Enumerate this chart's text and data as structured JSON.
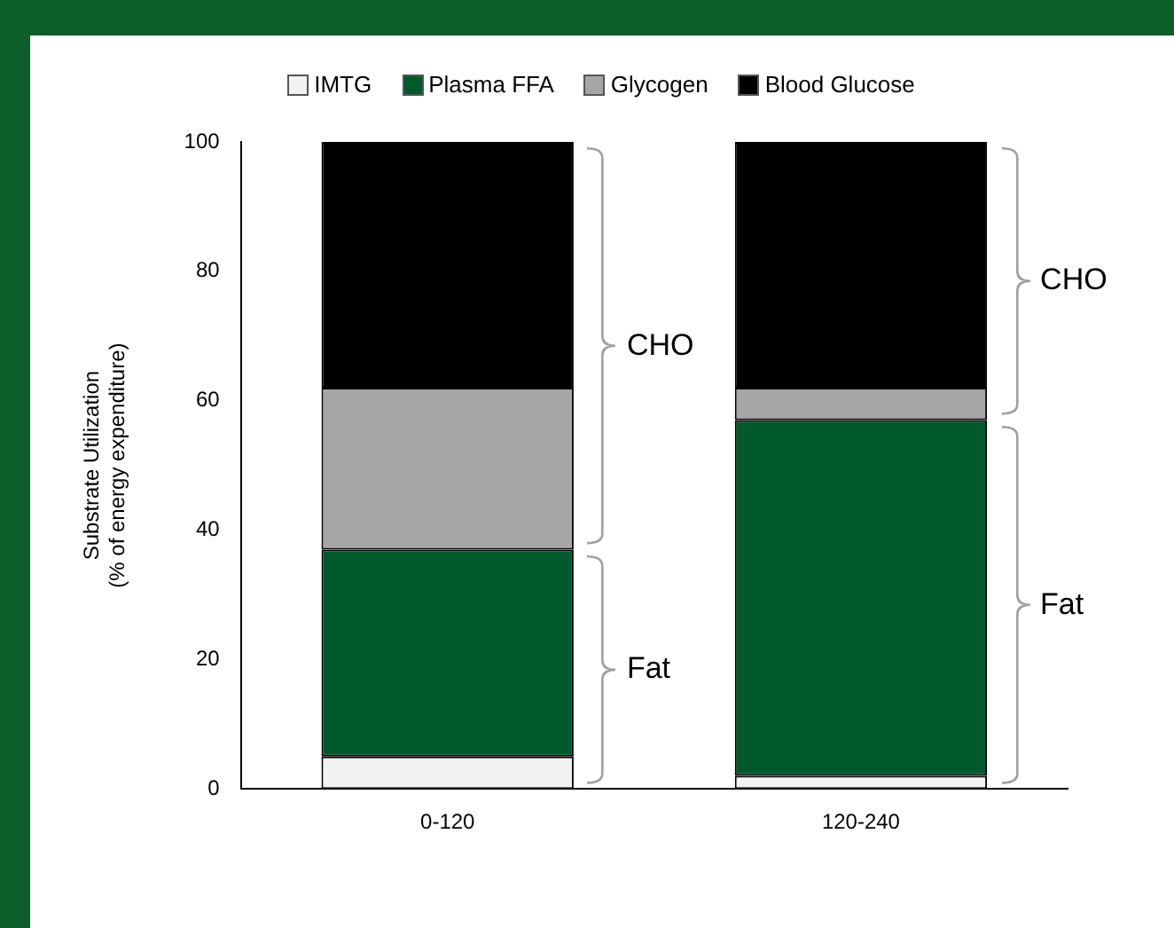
{
  "chart_data": {
    "type": "bar",
    "stacked": true,
    "ylabel": "Substrate Utilization\n(% of energy expenditure)",
    "categories": [
      "0-120",
      "120-240"
    ],
    "series": [
      {
        "name": "IMTG",
        "color": "#f2f2f2",
        "values": [
          5,
          2
        ]
      },
      {
        "name": "Plasma FFA",
        "color": "#005a2b",
        "values": [
          32,
          55
        ]
      },
      {
        "name": "Glycogen",
        "color": "#a6a6a6",
        "values": [
          25,
          5
        ]
      },
      {
        "name": "Blood Glucose",
        "color": "#000000",
        "values": [
          38,
          38
        ]
      }
    ],
    "ylim": [
      0,
      100
    ],
    "yticks": [
      0,
      20,
      40,
      60,
      80,
      100
    ],
    "grid": false,
    "legend": "top",
    "annotations": [
      "CHO",
      "Fat",
      "CHO",
      "Fat"
    ]
  }
}
